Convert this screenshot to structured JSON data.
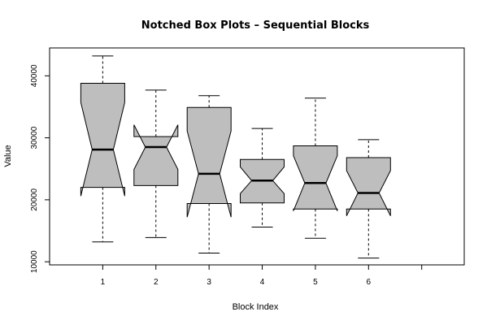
{
  "chart_data": {
    "type": "boxplot",
    "notched": true,
    "title": "Notched Box Plots – Sequential Blocks",
    "xlabel": "Block Index",
    "ylabel": "Value",
    "categories": [
      "1",
      "2",
      "3",
      "4",
      "5",
      "6"
    ],
    "xlim": [
      0.0,
      7.8
    ],
    "ylim": [
      9500,
      44500
    ],
    "yticks": [
      10000,
      20000,
      30000,
      40000
    ],
    "grid": false,
    "box_color": "#bebebe",
    "boxes": [
      {
        "category": "1",
        "whisker_low": 13200,
        "q1": 22000,
        "median": 28100,
        "q3": 38800,
        "whisker_high": 43200,
        "notch_low": 20600,
        "notch_high": 35700
      },
      {
        "category": "2",
        "whisker_low": 13900,
        "q1": 22300,
        "median": 28500,
        "q3": 30200,
        "whisker_high": 37700,
        "notch_low": 24900,
        "notch_high": 32100
      },
      {
        "category": "3",
        "whisker_low": 11400,
        "q1": 19400,
        "median": 24200,
        "q3": 34900,
        "whisker_high": 36800,
        "notch_low": 17200,
        "notch_high": 31100
      },
      {
        "category": "4",
        "whisker_low": 15600,
        "q1": 19500,
        "median": 23100,
        "q3": 26500,
        "whisker_high": 31500,
        "notch_low": 21000,
        "notch_high": 25300
      },
      {
        "category": "5",
        "whisker_low": 13800,
        "q1": 18500,
        "median": 22700,
        "q3": 28700,
        "whisker_high": 36400,
        "notch_low": 18200,
        "notch_high": 27100
      },
      {
        "category": "6",
        "whisker_low": 10600,
        "q1": 18500,
        "median": 21100,
        "q3": 26800,
        "whisker_high": 29700,
        "notch_low": 17400,
        "notch_high": 24700
      }
    ]
  }
}
